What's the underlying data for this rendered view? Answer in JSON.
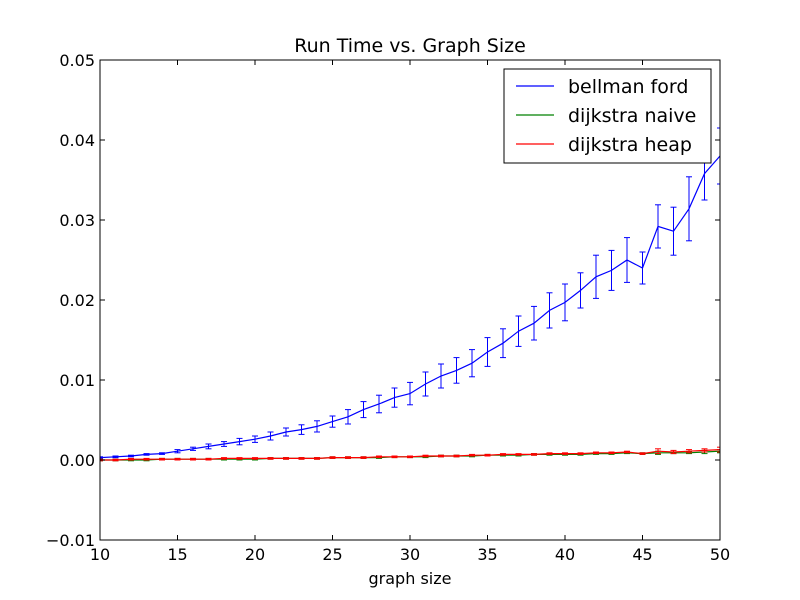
{
  "chart_data": {
    "type": "line",
    "title": "Run Time vs. Graph Size",
    "xlabel": "graph size",
    "ylabel": "",
    "xlim": [
      10,
      50
    ],
    "ylim": [
      -0.01,
      0.05
    ],
    "xticks": [
      10,
      15,
      20,
      25,
      30,
      35,
      40,
      45,
      50
    ],
    "xtick_labels": [
      "10",
      "15",
      "20",
      "25",
      "30",
      "35",
      "40",
      "45",
      "50"
    ],
    "yticks": [
      -0.01,
      0.0,
      0.01,
      0.02,
      0.03,
      0.04,
      0.05
    ],
    "ytick_labels": [
      "−0.01",
      "0.00",
      "0.01",
      "0.02",
      "0.03",
      "0.04",
      "0.05"
    ],
    "grid": false,
    "legend_position": "top-right",
    "x": [
      10,
      11,
      12,
      13,
      14,
      15,
      16,
      17,
      18,
      19,
      20,
      21,
      22,
      23,
      24,
      25,
      26,
      27,
      28,
      29,
      30,
      31,
      32,
      33,
      34,
      35,
      36,
      37,
      38,
      39,
      40,
      41,
      42,
      43,
      44,
      45,
      46,
      47,
      48,
      49,
      50
    ],
    "series": [
      {
        "name": "bellman ford",
        "color": "#0000ff",
        "values": [
          0.0003,
          0.0004,
          0.0005,
          0.0007,
          0.0008,
          0.0011,
          0.0014,
          0.0017,
          0.002,
          0.0023,
          0.0026,
          0.003,
          0.0035,
          0.0038,
          0.0042,
          0.0048,
          0.0054,
          0.0063,
          0.007,
          0.0078,
          0.0083,
          0.0095,
          0.0105,
          0.0112,
          0.0121,
          0.0135,
          0.0146,
          0.0161,
          0.0171,
          0.0187,
          0.0197,
          0.0212,
          0.0229,
          0.0237,
          0.025,
          0.024,
          0.0292,
          0.0286,
          0.0314,
          0.0358,
          0.038
        ],
        "errors": [
          0.0001,
          0.0001,
          0.0001,
          0.0001,
          0.0001,
          0.0002,
          0.0002,
          0.0003,
          0.0003,
          0.0004,
          0.0004,
          0.0005,
          0.0005,
          0.0006,
          0.0007,
          0.0007,
          0.0009,
          0.001,
          0.0011,
          0.0012,
          0.0014,
          0.0015,
          0.0015,
          0.0016,
          0.0017,
          0.0018,
          0.0018,
          0.0019,
          0.0021,
          0.0022,
          0.0023,
          0.0022,
          0.0027,
          0.0025,
          0.0028,
          0.002,
          0.0027,
          0.003,
          0.004,
          0.0033,
          0.0035
        ]
      },
      {
        "name": "dijkstra naive",
        "color": "#008000",
        "values": [
          0.0,
          0.0,
          0.0,
          0.0,
          0.0001,
          0.0001,
          0.0001,
          0.0001,
          0.0001,
          0.0001,
          0.0001,
          0.0002,
          0.0002,
          0.0002,
          0.0002,
          0.0003,
          0.0003,
          0.0003,
          0.0003,
          0.0004,
          0.0004,
          0.0004,
          0.0005,
          0.0005,
          0.0005,
          0.0006,
          0.0006,
          0.0006,
          0.0007,
          0.0007,
          0.0007,
          0.0007,
          0.0008,
          0.0008,
          0.0009,
          0.0008,
          0.0009,
          0.0009,
          0.0009,
          0.001,
          0.0011
        ],
        "errors": [
          0.0001,
          0.0001,
          0.0001,
          0.0001,
          0.0001,
          0.0001,
          0.0001,
          0.0001,
          0.0001,
          0.0001,
          0.0001,
          0.0001,
          0.0001,
          0.0001,
          0.0001,
          0.0001,
          0.0001,
          0.0001,
          0.0001,
          0.0001,
          0.0001,
          0.0001,
          0.0001,
          0.0001,
          0.0001,
          0.0001,
          0.0001,
          0.0001,
          0.0001,
          0.0001,
          0.0001,
          0.0001,
          0.0001,
          0.0001,
          0.0001,
          0.0001,
          0.0002,
          0.0001,
          0.0001,
          0.0002,
          0.0002
        ]
      },
      {
        "name": "dijkstra heap",
        "color": "#ff0000",
        "values": [
          0.0,
          0.0,
          0.0001,
          0.0001,
          0.0001,
          0.0001,
          0.0001,
          0.0001,
          0.0002,
          0.0002,
          0.0002,
          0.0002,
          0.0002,
          0.0002,
          0.0002,
          0.0003,
          0.0003,
          0.0003,
          0.0004,
          0.0004,
          0.0004,
          0.0005,
          0.0005,
          0.0005,
          0.0006,
          0.0006,
          0.0007,
          0.0007,
          0.0007,
          0.0008,
          0.0008,
          0.0008,
          0.0009,
          0.0009,
          0.001,
          0.0008,
          0.0011,
          0.001,
          0.0011,
          0.0012,
          0.0013
        ],
        "errors": [
          0.0001,
          0.0001,
          0.0001,
          0.0001,
          0.0001,
          0.0001,
          0.0001,
          0.0001,
          0.0001,
          0.0001,
          0.0001,
          0.0001,
          0.0001,
          0.0001,
          0.0001,
          0.0001,
          0.0001,
          0.0001,
          0.0001,
          0.0001,
          0.0001,
          0.0001,
          0.0001,
          0.0001,
          0.0001,
          0.0001,
          0.0001,
          0.0001,
          0.0001,
          0.0001,
          0.0001,
          0.0001,
          0.0001,
          0.0001,
          0.0001,
          0.0001,
          0.0003,
          0.0002,
          0.0002,
          0.0002,
          0.0003
        ]
      }
    ]
  }
}
